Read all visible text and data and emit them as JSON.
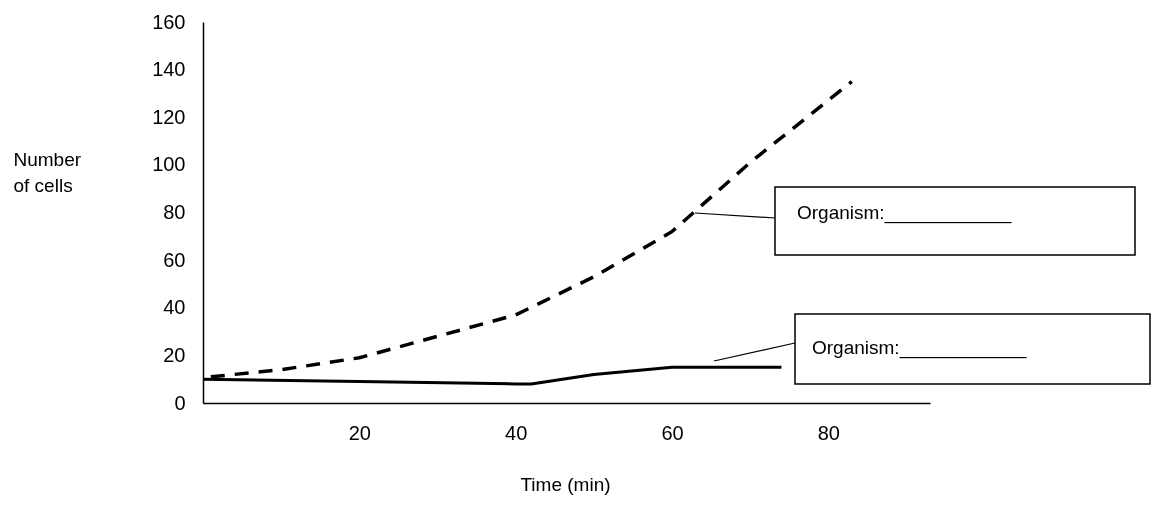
{
  "chart_data": {
    "type": "line",
    "xlabel": "Time (min)",
    "ylabel": "Number of cells",
    "xlim": [
      0,
      93
    ],
    "ylim": [
      0,
      160
    ],
    "xticks": [
      20,
      40,
      60,
      80
    ],
    "yticks": [
      0,
      20,
      40,
      60,
      80,
      100,
      120,
      140,
      160
    ],
    "series": [
      {
        "color": "#000000",
        "line_style": "dashed",
        "x": [
          1,
          10,
          20,
          30,
          40,
          50,
          60,
          70,
          83
        ],
        "values": [
          11,
          14,
          19,
          28,
          37,
          53,
          72,
          101,
          135
        ]
      },
      {
        "color": "#000000",
        "line_style": "solid",
        "x": [
          0,
          20,
          40,
          42,
          50,
          60,
          74
        ],
        "values": [
          10,
          9,
          8,
          8,
          12,
          15,
          15
        ]
      }
    ],
    "annotations": [
      "Organism:____________",
      "Organism:____________"
    ]
  }
}
